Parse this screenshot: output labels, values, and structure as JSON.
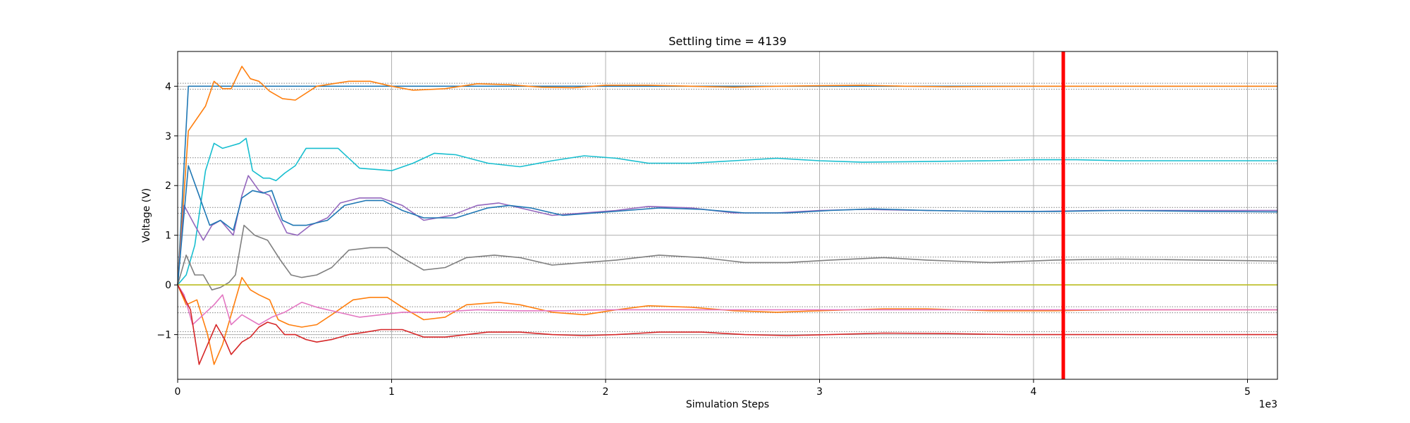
{
  "chart_data": {
    "type": "line",
    "title": "Settling time = 4139",
    "xlabel": "Simulation Steps",
    "ylabel": "Voltage (V)",
    "x_offset_text": "1e3",
    "xlim": [
      0,
      5140
    ],
    "ylim": [
      -1.9,
      4.7
    ],
    "x_ticks": [
      0,
      1000,
      2000,
      3000,
      4000,
      5000
    ],
    "x_tick_labels": [
      "0",
      "1",
      "2",
      "3",
      "4",
      "5"
    ],
    "y_ticks": [
      -1,
      0,
      1,
      2,
      3,
      4
    ],
    "y_tick_labels": [
      "−1",
      "0",
      "1",
      "2",
      "3",
      "4"
    ],
    "grid": true,
    "settling_time": 4139,
    "settling_marker_color": "#ff0000",
    "tolerance_bands": [
      [
        3.94,
        4.06
      ],
      [
        2.44,
        2.56
      ],
      [
        1.44,
        1.56
      ],
      [
        0.44,
        0.56
      ],
      [
        -0.56,
        -0.44
      ],
      [
        -1.06,
        -0.94
      ]
    ],
    "series": [
      {
        "color": "#1f77b4",
        "points": [
          [
            0,
            0
          ],
          [
            50,
            4.0
          ],
          [
            5140,
            4.0
          ]
        ]
      },
      {
        "color": "#ff7f0e",
        "points": [
          [
            0,
            0
          ],
          [
            50,
            3.1
          ],
          [
            130,
            3.6
          ],
          [
            170,
            4.1
          ],
          [
            210,
            3.95
          ],
          [
            250,
            3.95
          ],
          [
            300,
            4.4
          ],
          [
            340,
            4.15
          ],
          [
            380,
            4.1
          ],
          [
            430,
            3.9
          ],
          [
            490,
            3.75
          ],
          [
            550,
            3.72
          ],
          [
            650,
            4.0
          ],
          [
            800,
            4.1
          ],
          [
            900,
            4.1
          ],
          [
            1000,
            4.0
          ],
          [
            1100,
            3.92
          ],
          [
            1250,
            3.95
          ],
          [
            1400,
            4.05
          ],
          [
            1550,
            4.03
          ],
          [
            1700,
            3.98
          ],
          [
            1850,
            3.97
          ],
          [
            2000,
            4.02
          ],
          [
            2200,
            4.02
          ],
          [
            2400,
            4.0
          ],
          [
            2600,
            3.98
          ],
          [
            2800,
            4.0
          ],
          [
            3000,
            4.01
          ],
          [
            3200,
            4.02
          ],
          [
            3400,
            4.0
          ],
          [
            3600,
            3.99
          ],
          [
            4000,
            4.0
          ],
          [
            4500,
            4.0
          ],
          [
            5140,
            4.0
          ]
        ]
      },
      {
        "color": "#17becf",
        "points": [
          [
            0,
            0
          ],
          [
            40,
            0.2
          ],
          [
            80,
            0.8
          ],
          [
            130,
            2.3
          ],
          [
            170,
            2.85
          ],
          [
            210,
            2.75
          ],
          [
            250,
            2.8
          ],
          [
            290,
            2.85
          ],
          [
            320,
            2.95
          ],
          [
            350,
            2.3
          ],
          [
            400,
            2.15
          ],
          [
            430,
            2.15
          ],
          [
            460,
            2.1
          ],
          [
            500,
            2.25
          ],
          [
            550,
            2.4
          ],
          [
            600,
            2.75
          ],
          [
            700,
            2.75
          ],
          [
            750,
            2.75
          ],
          [
            850,
            2.35
          ],
          [
            1000,
            2.3
          ],
          [
            1100,
            2.45
          ],
          [
            1200,
            2.65
          ],
          [
            1300,
            2.62
          ],
          [
            1450,
            2.45
          ],
          [
            1600,
            2.38
          ],
          [
            1750,
            2.5
          ],
          [
            1900,
            2.6
          ],
          [
            2050,
            2.55
          ],
          [
            2200,
            2.45
          ],
          [
            2400,
            2.45
          ],
          [
            2600,
            2.5
          ],
          [
            2800,
            2.55
          ],
          [
            3000,
            2.5
          ],
          [
            3200,
            2.47
          ],
          [
            3400,
            2.48
          ],
          [
            3600,
            2.49
          ],
          [
            3800,
            2.5
          ],
          [
            4000,
            2.52
          ],
          [
            4200,
            2.52
          ],
          [
            4400,
            2.5
          ],
          [
            4700,
            2.5
          ],
          [
            5140,
            2.5
          ]
        ]
      },
      {
        "color": "#9467bd",
        "points": [
          [
            0,
            0
          ],
          [
            30,
            1.6
          ],
          [
            80,
            1.2
          ],
          [
            120,
            0.9
          ],
          [
            160,
            1.2
          ],
          [
            200,
            1.3
          ],
          [
            260,
            1.0
          ],
          [
            300,
            1.8
          ],
          [
            330,
            2.2
          ],
          [
            380,
            1.9
          ],
          [
            430,
            1.8
          ],
          [
            470,
            1.4
          ],
          [
            510,
            1.05
          ],
          [
            560,
            1.0
          ],
          [
            620,
            1.2
          ],
          [
            700,
            1.35
          ],
          [
            760,
            1.65
          ],
          [
            850,
            1.75
          ],
          [
            950,
            1.75
          ],
          [
            1050,
            1.6
          ],
          [
            1150,
            1.3
          ],
          [
            1280,
            1.4
          ],
          [
            1400,
            1.6
          ],
          [
            1500,
            1.65
          ],
          [
            1600,
            1.55
          ],
          [
            1750,
            1.4
          ],
          [
            1900,
            1.45
          ],
          [
            2050,
            1.5
          ],
          [
            2200,
            1.58
          ],
          [
            2400,
            1.55
          ],
          [
            2600,
            1.45
          ],
          [
            2800,
            1.45
          ],
          [
            3000,
            1.5
          ],
          [
            3200,
            1.52
          ],
          [
            3500,
            1.5
          ],
          [
            3800,
            1.48
          ],
          [
            4000,
            1.48
          ],
          [
            4300,
            1.5
          ],
          [
            4700,
            1.5
          ],
          [
            5140,
            1.5
          ]
        ]
      },
      {
        "color": "#1f77b4",
        "points": [
          [
            0,
            0
          ],
          [
            50,
            2.4
          ],
          [
            100,
            1.8
          ],
          [
            150,
            1.2
          ],
          [
            200,
            1.3
          ],
          [
            260,
            1.1
          ],
          [
            300,
            1.75
          ],
          [
            350,
            1.9
          ],
          [
            400,
            1.85
          ],
          [
            440,
            1.9
          ],
          [
            490,
            1.3
          ],
          [
            540,
            1.2
          ],
          [
            600,
            1.2
          ],
          [
            700,
            1.3
          ],
          [
            780,
            1.6
          ],
          [
            880,
            1.7
          ],
          [
            960,
            1.7
          ],
          [
            1050,
            1.5
          ],
          [
            1150,
            1.35
          ],
          [
            1300,
            1.35
          ],
          [
            1450,
            1.55
          ],
          [
            1550,
            1.6
          ],
          [
            1650,
            1.55
          ],
          [
            1800,
            1.4
          ],
          [
            1950,
            1.45
          ],
          [
            2100,
            1.5
          ],
          [
            2250,
            1.55
          ],
          [
            2450,
            1.52
          ],
          [
            2650,
            1.45
          ],
          [
            2850,
            1.45
          ],
          [
            3050,
            1.5
          ],
          [
            3250,
            1.53
          ],
          [
            3500,
            1.5
          ],
          [
            3800,
            1.48
          ],
          [
            4100,
            1.48
          ],
          [
            4400,
            1.5
          ],
          [
            4800,
            1.48
          ],
          [
            5140,
            1.47
          ]
        ]
      },
      {
        "color": "#7f7f7f",
        "points": [
          [
            0,
            0
          ],
          [
            40,
            0.6
          ],
          [
            80,
            0.2
          ],
          [
            120,
            0.2
          ],
          [
            160,
            -0.1
          ],
          [
            200,
            -0.05
          ],
          [
            240,
            0.05
          ],
          [
            270,
            0.2
          ],
          [
            310,
            1.2
          ],
          [
            360,
            1.0
          ],
          [
            420,
            0.9
          ],
          [
            480,
            0.5
          ],
          [
            530,
            0.2
          ],
          [
            580,
            0.15
          ],
          [
            650,
            0.2
          ],
          [
            720,
            0.35
          ],
          [
            800,
            0.7
          ],
          [
            900,
            0.75
          ],
          [
            980,
            0.75
          ],
          [
            1050,
            0.55
          ],
          [
            1150,
            0.3
          ],
          [
            1250,
            0.35
          ],
          [
            1350,
            0.55
          ],
          [
            1480,
            0.6
          ],
          [
            1600,
            0.55
          ],
          [
            1750,
            0.4
          ],
          [
            1900,
            0.45
          ],
          [
            2050,
            0.5
          ],
          [
            2250,
            0.6
          ],
          [
            2450,
            0.55
          ],
          [
            2650,
            0.45
          ],
          [
            2850,
            0.45
          ],
          [
            3050,
            0.5
          ],
          [
            3300,
            0.55
          ],
          [
            3500,
            0.5
          ],
          [
            3800,
            0.45
          ],
          [
            4100,
            0.5
          ],
          [
            4400,
            0.52
          ],
          [
            4800,
            0.5
          ],
          [
            5140,
            0.48
          ]
        ]
      },
      {
        "color": "#bcbd22",
        "points": [
          [
            0,
            0
          ],
          [
            5140,
            0
          ]
        ]
      },
      {
        "color": "#ff7f0e",
        "points": [
          [
            0,
            0
          ],
          [
            40,
            -0.4
          ],
          [
            90,
            -0.3
          ],
          [
            140,
            -1.0
          ],
          [
            170,
            -1.6
          ],
          [
            210,
            -1.2
          ],
          [
            250,
            -0.6
          ],
          [
            300,
            0.15
          ],
          [
            340,
            -0.1
          ],
          [
            380,
            -0.2
          ],
          [
            430,
            -0.3
          ],
          [
            470,
            -0.7
          ],
          [
            520,
            -0.8
          ],
          [
            580,
            -0.85
          ],
          [
            650,
            -0.8
          ],
          [
            720,
            -0.6
          ],
          [
            820,
            -0.3
          ],
          [
            900,
            -0.25
          ],
          [
            980,
            -0.25
          ],
          [
            1050,
            -0.45
          ],
          [
            1150,
            -0.7
          ],
          [
            1250,
            -0.65
          ],
          [
            1350,
            -0.4
          ],
          [
            1500,
            -0.35
          ],
          [
            1600,
            -0.4
          ],
          [
            1750,
            -0.55
          ],
          [
            1900,
            -0.6
          ],
          [
            2050,
            -0.5
          ],
          [
            2200,
            -0.42
          ],
          [
            2400,
            -0.45
          ],
          [
            2600,
            -0.52
          ],
          [
            2800,
            -0.55
          ],
          [
            3000,
            -0.52
          ],
          [
            3300,
            -0.48
          ],
          [
            3500,
            -0.48
          ],
          [
            3800,
            -0.52
          ],
          [
            4100,
            -0.52
          ],
          [
            4400,
            -0.5
          ],
          [
            4800,
            -0.5
          ],
          [
            5140,
            -0.5
          ]
        ]
      },
      {
        "color": "#e377c2",
        "points": [
          [
            0,
            0
          ],
          [
            30,
            -0.2
          ],
          [
            70,
            -0.8
          ],
          [
            120,
            -0.6
          ],
          [
            170,
            -0.4
          ],
          [
            210,
            -0.2
          ],
          [
            250,
            -0.8
          ],
          [
            300,
            -0.6
          ],
          [
            380,
            -0.8
          ],
          [
            440,
            -0.65
          ],
          [
            500,
            -0.55
          ],
          [
            580,
            -0.35
          ],
          [
            650,
            -0.45
          ],
          [
            750,
            -0.55
          ],
          [
            850,
            -0.65
          ],
          [
            950,
            -0.6
          ],
          [
            1050,
            -0.55
          ],
          [
            1200,
            -0.55
          ],
          [
            1400,
            -0.5
          ],
          [
            1600,
            -0.52
          ],
          [
            1800,
            -0.52
          ],
          [
            2000,
            -0.5
          ],
          [
            2400,
            -0.5
          ],
          [
            2800,
            -0.5
          ],
          [
            3200,
            -0.5
          ],
          [
            3600,
            -0.5
          ],
          [
            4000,
            -0.5
          ],
          [
            4400,
            -0.5
          ],
          [
            5140,
            -0.5
          ]
        ]
      },
      {
        "color": "#d62728",
        "points": [
          [
            0,
            0
          ],
          [
            60,
            -0.5
          ],
          [
            100,
            -1.6
          ],
          [
            140,
            -1.2
          ],
          [
            180,
            -0.8
          ],
          [
            220,
            -1.1
          ],
          [
            250,
            -1.4
          ],
          [
            300,
            -1.15
          ],
          [
            340,
            -1.05
          ],
          [
            380,
            -0.85
          ],
          [
            420,
            -0.75
          ],
          [
            460,
            -0.8
          ],
          [
            500,
            -1.0
          ],
          [
            550,
            -1.0
          ],
          [
            600,
            -1.1
          ],
          [
            650,
            -1.15
          ],
          [
            720,
            -1.1
          ],
          [
            800,
            -1.0
          ],
          [
            880,
            -0.95
          ],
          [
            950,
            -0.9
          ],
          [
            1050,
            -0.9
          ],
          [
            1150,
            -1.05
          ],
          [
            1250,
            -1.05
          ],
          [
            1350,
            -1.0
          ],
          [
            1450,
            -0.95
          ],
          [
            1600,
            -0.95
          ],
          [
            1750,
            -1.0
          ],
          [
            1900,
            -1.02
          ],
          [
            2050,
            -1.0
          ],
          [
            2250,
            -0.95
          ],
          [
            2450,
            -0.95
          ],
          [
            2650,
            -1.0
          ],
          [
            2850,
            -1.02
          ],
          [
            3050,
            -1.0
          ],
          [
            3300,
            -0.97
          ],
          [
            3600,
            -0.98
          ],
          [
            3900,
            -1.0
          ],
          [
            4200,
            -1.0
          ],
          [
            4600,
            -1.0
          ],
          [
            5140,
            -1.0
          ]
        ]
      }
    ]
  }
}
